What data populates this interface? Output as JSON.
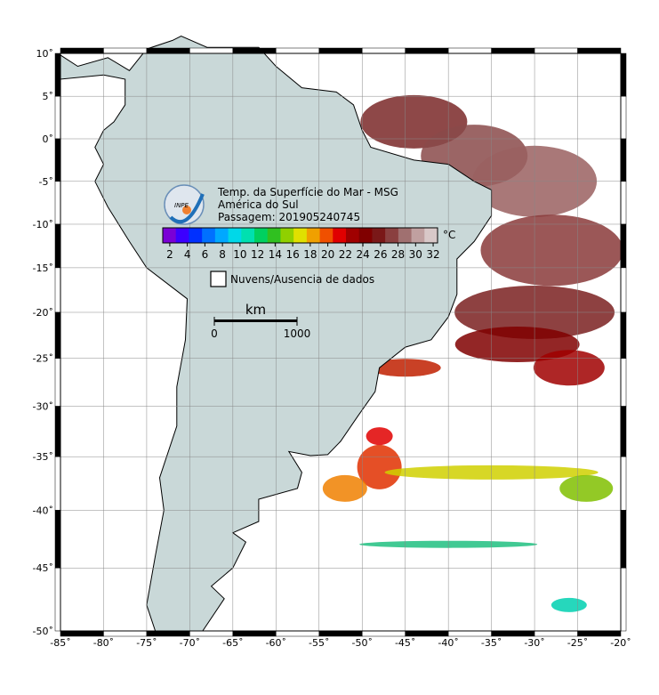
{
  "map": {
    "title": "Temp. da Superfície do Mar - MSG",
    "subtitle": "América do Sul",
    "pass": "Passagem: 201905240745",
    "logo_text": "INPE",
    "lonlim": [
      -85,
      -20
    ],
    "latlim": [
      -50,
      10
    ],
    "lon_ticks": [
      {
        "value": -85,
        "label": "-85˚"
      },
      {
        "value": -80,
        "label": "-80˚"
      },
      {
        "value": -75,
        "label": "-75˚"
      },
      {
        "value": -70,
        "label": "-70˚"
      },
      {
        "value": -65,
        "label": "-65˚"
      },
      {
        "value": -60,
        "label": "-60˚"
      },
      {
        "value": -55,
        "label": "-55˚"
      },
      {
        "value": -50,
        "label": "-50˚"
      },
      {
        "value": -45,
        "label": "-45˚"
      },
      {
        "value": -40,
        "label": "-40˚"
      },
      {
        "value": -35,
        "label": "-35˚"
      },
      {
        "value": -30,
        "label": "-30˚"
      },
      {
        "value": -25,
        "label": "-25˚"
      },
      {
        "value": -20,
        "label": "-20˚"
      }
    ],
    "lat_ticks": [
      {
        "value": 10,
        "label": "10˚"
      },
      {
        "value": 5,
        "label": "5˚"
      },
      {
        "value": 0,
        "label": "0˚"
      },
      {
        "value": -5,
        "label": "-5˚"
      },
      {
        "value": -10,
        "label": "-10˚"
      },
      {
        "value": -15,
        "label": "-15˚"
      },
      {
        "value": -20,
        "label": "-20˚"
      },
      {
        "value": -25,
        "label": "-25˚"
      },
      {
        "value": -30,
        "label": "-30˚"
      },
      {
        "value": -35,
        "label": "-35˚"
      },
      {
        "value": -40,
        "label": "-40˚"
      },
      {
        "value": -45,
        "label": "-45˚"
      },
      {
        "value": -50,
        "label": "-50˚"
      }
    ],
    "colorbar": {
      "unit": "°C",
      "range": [
        1.2,
        32.5
      ],
      "ticks": [
        2,
        4,
        6,
        8,
        10,
        12,
        14,
        16,
        18,
        20,
        22,
        24,
        26,
        28,
        30,
        32
      ],
      "colors": [
        "#7a00d6",
        "#3c00ff",
        "#0030ff",
        "#0070ff",
        "#00a8ff",
        "#00d8e8",
        "#00e0b0",
        "#00d060",
        "#30c020",
        "#90d000",
        "#e0e000",
        "#f0a000",
        "#f05000",
        "#e00000",
        "#a00000",
        "#800000",
        "#7a1818",
        "#8a4040",
        "#a07070",
        "#c0a0a0",
        "#d8c8c8"
      ]
    },
    "legend": "Nuvens/Ausencia de dados",
    "scale_bar": {
      "unit": "km",
      "ticks": [
        0,
        1000
      ]
    }
  }
}
